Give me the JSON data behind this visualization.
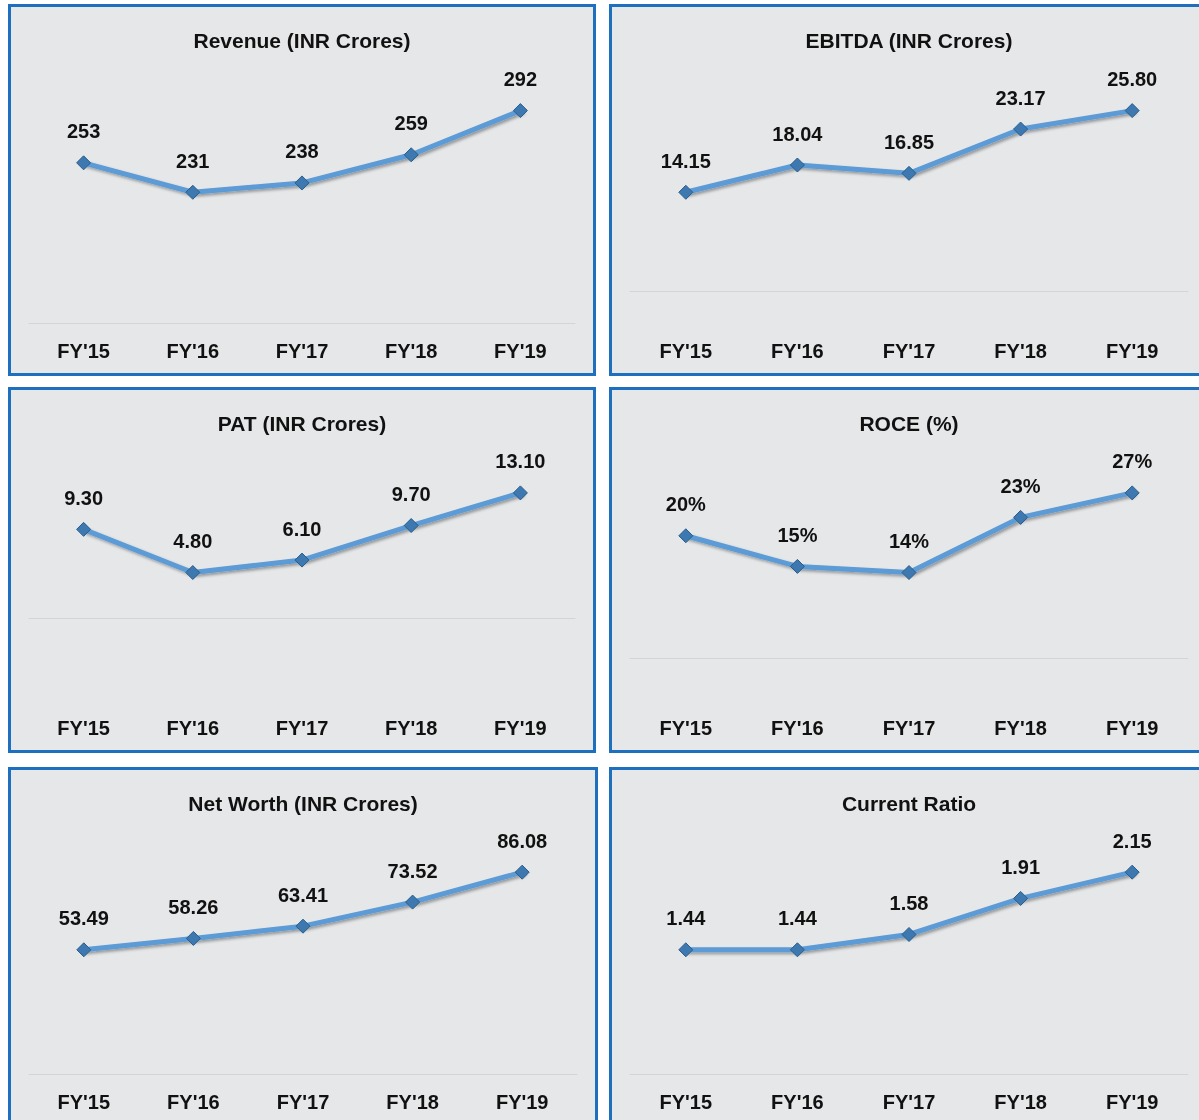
{
  "chart_data": [
    {
      "type": "line",
      "title": "Revenue (INR Crores)",
      "categories": [
        "FY'15",
        "FY'16",
        "FY'17",
        "FY'18",
        "FY'19"
      ],
      "series": [
        {
          "color": "#5b9bd5",
          "values": [
            253,
            231,
            238,
            259,
            292
          ],
          "value_labels": [
            "253",
            "231",
            "238",
            "259",
            "292"
          ]
        }
      ],
      "marker": "diamond",
      "tick_labels": "x"
    },
    {
      "type": "line",
      "title": "EBITDA (INR Crores)",
      "categories": [
        "FY'15",
        "FY'16",
        "FY'17",
        "FY'18",
        "FY'19"
      ],
      "series": [
        {
          "color": "#5b9bd5",
          "values": [
            14.15,
            18.04,
            16.85,
            23.17,
            25.8
          ],
          "value_labels": [
            "14.15",
            "18.04",
            "16.85",
            "23.17",
            "25.80"
          ]
        }
      ],
      "marker": "diamond",
      "tick_labels": "x"
    },
    {
      "type": "line",
      "title": "PAT (INR Crores)",
      "categories": [
        "FY'15",
        "FY'16",
        "FY'17",
        "FY'18",
        "FY'19"
      ],
      "series": [
        {
          "color": "#5b9bd5",
          "values": [
            9.3,
            4.8,
            6.1,
            9.7,
            13.1
          ],
          "value_labels": [
            "9.30",
            "4.80",
            "6.10",
            "9.70",
            "13.10"
          ]
        }
      ],
      "marker": "diamond",
      "tick_labels": "x"
    },
    {
      "type": "line",
      "title": "ROCE (%)",
      "categories": [
        "FY'15",
        "FY'16",
        "FY'17",
        "FY'18",
        "FY'19"
      ],
      "series": [
        {
          "color": "#5b9bd5",
          "values": [
            20,
            15,
            14,
            23,
            27
          ],
          "value_labels": [
            "20%",
            "15%",
            "14%",
            "23%",
            "27%"
          ]
        }
      ],
      "marker": "diamond",
      "tick_labels": "x"
    },
    {
      "type": "line",
      "title": "Net Worth (INR Crores)",
      "categories": [
        "FY'15",
        "FY'16",
        "FY'17",
        "FY'18",
        "FY'19"
      ],
      "series": [
        {
          "color": "#5b9bd5",
          "values": [
            53.49,
            58.26,
            63.41,
            73.52,
            86.08
          ],
          "value_labels": [
            "53.49",
            "58.26",
            "63.41",
            "73.52",
            "86.08"
          ]
        }
      ],
      "marker": "diamond",
      "tick_labels": "x"
    },
    {
      "type": "line",
      "title": "Current Ratio",
      "categories": [
        "FY'15",
        "FY'16",
        "FY'17",
        "FY'18",
        "FY'19"
      ],
      "series": [
        {
          "color": "#5b9bd5",
          "values": [
            1.44,
            1.44,
            1.58,
            1.91,
            2.15
          ],
          "value_labels": [
            "1.44",
            "1.44",
            "1.58",
            "1.91",
            "2.15"
          ]
        }
      ],
      "marker": "diamond",
      "tick_labels": "x"
    }
  ]
}
